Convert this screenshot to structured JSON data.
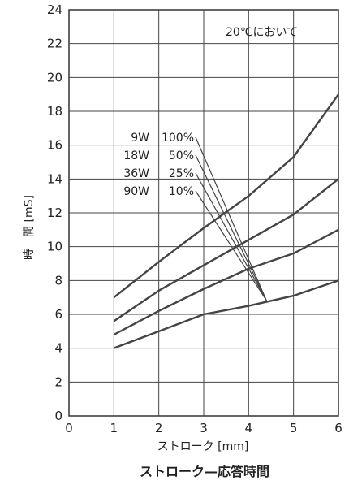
{
  "chart_data": {
    "type": "line",
    "title": "ストローク—応答時間",
    "annotation": "20℃において",
    "xlabel": "ストローク [mm]",
    "ylabel": "時　間 [mS]",
    "xlim": [
      0,
      6
    ],
    "ylim": [
      0,
      24
    ],
    "x_ticks": [
      0,
      1,
      2,
      3,
      4,
      5,
      6
    ],
    "y_ticks": [
      0,
      2,
      4,
      6,
      8,
      10,
      12,
      14,
      16,
      18,
      20,
      22,
      24
    ],
    "grid": true,
    "series": [
      {
        "name": "9W 100%",
        "x": [
          1,
          2,
          3,
          4,
          5,
          6
        ],
        "values": [
          4.0,
          5.0,
          6.0,
          6.5,
          7.1,
          8.0
        ]
      },
      {
        "name": "18W 50%",
        "x": [
          1,
          2,
          3,
          4,
          5,
          6
        ],
        "values": [
          4.8,
          6.2,
          7.5,
          8.7,
          9.6,
          11.0
        ]
      },
      {
        "name": "36W 25%",
        "x": [
          1,
          2,
          3,
          4,
          5,
          6
        ],
        "values": [
          5.6,
          7.4,
          8.9,
          10.4,
          11.9,
          14.0
        ]
      },
      {
        "name": "90W 10%",
        "x": [
          1,
          2,
          3,
          4,
          5,
          6
        ],
        "values": [
          7.0,
          9.1,
          11.1,
          13.0,
          15.3,
          19.0
        ]
      }
    ],
    "legend_labels": [
      {
        "watt": "9W",
        "pct": "100%"
      },
      {
        "watt": "18W",
        "pct": "50%"
      },
      {
        "watt": "36W",
        "pct": "25%"
      },
      {
        "watt": "90W",
        "pct": "10%"
      }
    ]
  }
}
